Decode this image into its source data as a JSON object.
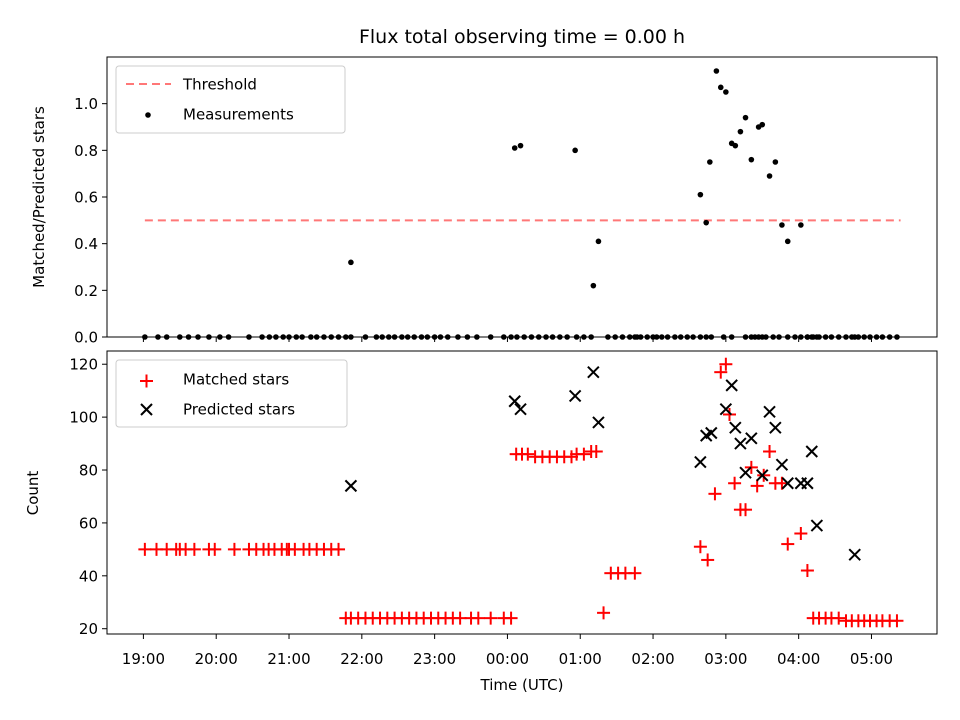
{
  "chart_data": {
    "title": "Flux total observing time = 0.00 h",
    "xlabel": "Time (UTC)",
    "x_ticks": [
      "19:00",
      "20:00",
      "21:00",
      "22:00",
      "23:00",
      "00:00",
      "01:00",
      "02:00",
      "03:00",
      "04:00",
      "05:00"
    ],
    "x_range_hours": [
      -0.5,
      10.9
    ],
    "panels": [
      {
        "type": "scatter",
        "ylabel": "Matched/Predicted stars",
        "ylim": [
          0,
          1.2
        ],
        "y_ticks": [
          "0.0",
          "0.2",
          "0.4",
          "0.6",
          "0.8",
          "1.0"
        ],
        "legend_position": "top-left",
        "legend": [
          "Threshold",
          "Measurements"
        ],
        "threshold": {
          "name": "Threshold",
          "y": 0.5,
          "x": [
            0.02,
            10.4
          ],
          "color": "#ff7777"
        },
        "measurements": {
          "name": "Measurements",
          "color": "#000000",
          "x": [
            0.02,
            0.2,
            0.32,
            0.5,
            0.62,
            0.75,
            0.9,
            1.05,
            1.17,
            1.45,
            1.63,
            1.73,
            1.82,
            1.92,
            2.0,
            2.1,
            2.18,
            2.3,
            2.38,
            2.48,
            2.58,
            2.68,
            2.78,
            2.85,
            3.05,
            3.2,
            3.28,
            3.37,
            3.45,
            3.55,
            3.63,
            3.72,
            3.82,
            3.9,
            4.0,
            4.08,
            4.18,
            4.32,
            4.45,
            4.58,
            4.77,
            4.95,
            5.05,
            5.13,
            5.23,
            5.33,
            5.43,
            5.53,
            5.62,
            5.72,
            5.82,
            5.95,
            6.05,
            6.15,
            6.38,
            6.48,
            6.58,
            6.68,
            6.78,
            2.85,
            5.1,
            5.18,
            5.93,
            6.18,
            6.25,
            6.75,
            6.83,
            6.92,
            7.0,
            7.05,
            7.12,
            7.2,
            7.3,
            7.38,
            7.47,
            7.55,
            7.65,
            7.73,
            7.8,
            7.97,
            8.08,
            8.27,
            8.35,
            8.4,
            8.45,
            8.5,
            8.55,
            8.65,
            8.73,
            8.85,
            8.95,
            9.03,
            9.12,
            9.2,
            9.28,
            9.37,
            9.45,
            9.55,
            9.65,
            9.73,
            9.82,
            9.9,
            9.98,
            10.07,
            10.15,
            10.25,
            10.35,
            7.65,
            7.73,
            7.78,
            7.87,
            7.93,
            8.0,
            8.08,
            8.13,
            8.2,
            8.27,
            8.35,
            8.45,
            8.5,
            8.6,
            8.68,
            8.77,
            8.85,
            9.03,
            9.12,
            9.18,
            9.25,
            9.77
          ],
          "y": [
            0,
            0,
            0,
            0,
            0,
            0,
            0,
            0,
            0,
            0,
            0,
            0,
            0,
            0,
            0,
            0,
            0,
            0,
            0,
            0,
            0,
            0,
            0,
            0,
            0,
            0,
            0,
            0,
            0,
            0,
            0,
            0,
            0,
            0,
            0,
            0,
            0,
            0,
            0,
            0,
            0,
            0,
            0,
            0,
            0,
            0,
            0,
            0,
            0,
            0,
            0,
            0,
            0,
            0,
            0,
            0,
            0,
            0,
            0,
            0.32,
            0.81,
            0.82,
            0.8,
            0.22,
            0.41,
            0,
            0,
            0,
            0,
            0,
            0,
            0,
            0,
            0,
            0,
            0,
            0,
            0,
            0,
            0,
            0,
            0,
            0,
            0,
            0,
            0,
            0,
            0,
            0,
            0,
            0,
            0,
            0,
            0,
            0,
            0,
            0,
            0,
            0,
            0,
            0,
            0,
            0,
            0,
            0,
            0,
            0,
            0.61,
            0.49,
            0.75,
            1.14,
            1.07,
            1.05,
            0.83,
            0.82,
            0.88,
            0.94,
            0.76,
            0.9,
            0.91,
            0.69,
            0.75,
            0.48,
            0.41,
            0.48,
            0,
            0,
            0,
            0
          ]
        }
      },
      {
        "type": "scatter",
        "ylabel": "Count",
        "ylim": [
          18,
          125
        ],
        "y_ticks": [
          "20",
          "40",
          "60",
          "80",
          "100",
          "120"
        ],
        "legend_position": "top-left",
        "legend": [
          "Matched stars",
          "Predicted stars"
        ],
        "series": [
          {
            "name": "Matched stars",
            "marker": "+",
            "color": "#ff0000",
            "x": [
              0.02,
              0.18,
              0.32,
              0.45,
              0.5,
              0.58,
              0.7,
              0.9,
              0.98,
              1.25,
              1.45,
              1.55,
              1.65,
              1.72,
              1.8,
              1.9,
              1.97,
              2.0,
              2.08,
              2.2,
              2.28,
              2.38,
              2.48,
              2.58,
              2.68,
              2.78,
              2.85,
              2.95,
              3.05,
              3.15,
              3.25,
              3.35,
              3.45,
              3.55,
              3.65,
              3.75,
              3.85,
              3.95,
              4.05,
              4.15,
              4.25,
              4.35,
              4.5,
              4.6,
              4.77,
              4.95,
              5.05,
              5.12,
              5.2,
              5.28,
              5.38,
              5.48,
              5.58,
              5.68,
              5.78,
              5.88,
              5.95,
              6.05,
              6.15,
              6.22,
              6.32,
              6.42,
              6.52,
              6.62,
              6.75,
              7.65,
              7.75,
              7.85,
              7.93,
              8.0,
              8.05,
              8.12,
              8.2,
              8.27,
              8.35,
              8.43,
              8.52,
              8.6,
              8.68,
              8.77,
              8.85,
              9.03,
              9.12,
              9.2,
              9.28,
              9.37,
              9.45,
              9.55,
              9.65,
              9.73,
              9.82,
              9.9,
              9.98,
              10.07,
              10.15,
              10.25,
              10.35
            ],
            "y": [
              50,
              50,
              50,
              50,
              50,
              50,
              50,
              50,
              50,
              50,
              50,
              50,
              50,
              50,
              50,
              50,
              50,
              50,
              50,
              50,
              50,
              50,
              50,
              50,
              50,
              24,
              24,
              24,
              24,
              24,
              24,
              24,
              24,
              24,
              24,
              24,
              24,
              24,
              24,
              24,
              24,
              24,
              24,
              24,
              24,
              24,
              24,
              86,
              86,
              86,
              85,
              85,
              85,
              85,
              85,
              85,
              86,
              86,
              87,
              87,
              26,
              41,
              41,
              41,
              41,
              51,
              46,
              71,
              117,
              120,
              101,
              75,
              65,
              65,
              81,
              74,
              78,
              87,
              75,
              75,
              52,
              56,
              42,
              24,
              24,
              24,
              24,
              24,
              23,
              23,
              23,
              23,
              23,
              23,
              23,
              23,
              23
            ]
          },
          {
            "name": "Predicted stars",
            "marker": "x",
            "color": "#000000",
            "x": [
              2.85,
              5.1,
              5.18,
              5.93,
              6.18,
              6.25,
              7.65,
              7.73,
              7.8,
              8.0,
              8.08,
              8.13,
              8.2,
              8.27,
              8.35,
              8.5,
              8.6,
              8.68,
              8.77,
              8.85,
              9.03,
              9.12,
              9.18,
              9.25,
              9.77
            ],
            "y": [
              74,
              106,
              103,
              108,
              117,
              98,
              83,
              93,
              94,
              103,
              112,
              96,
              90,
              79,
              92,
              78,
              102,
              96,
              82,
              75,
              75,
              75,
              87,
              59,
              48
            ]
          }
        ]
      }
    ]
  }
}
